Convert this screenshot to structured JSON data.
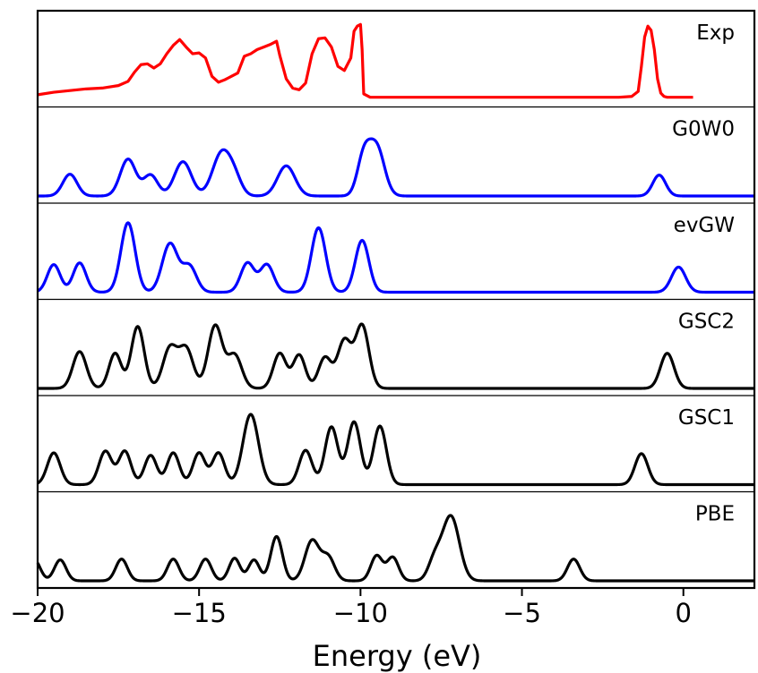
{
  "chart_data": {
    "type": "line",
    "xlabel": "Energy (eV)",
    "ylabel": "",
    "xlim": [
      -20,
      2.2
    ],
    "x_ticks": [
      -20,
      -15,
      -10,
      -5,
      0
    ],
    "x_tick_labels": [
      "−20",
      "−15",
      "−10",
      "−5",
      "0"
    ],
    "grid": false,
    "legend": "panel labels at top-right of each panel",
    "panels": [
      {
        "name": "Exp",
        "color": "#ff0000",
        "x": [
          -20,
          -19.5,
          -19,
          -18.5,
          -18,
          -17.5,
          -17.2,
          -17.0,
          -16.8,
          -16.6,
          -16.4,
          -16.2,
          -16.0,
          -15.8,
          -15.6,
          -15.4,
          -15.2,
          -15.0,
          -14.8,
          -14.6,
          -14.4,
          -14.2,
          -14.0,
          -13.8,
          -13.6,
          -13.4,
          -13.2,
          -13.0,
          -12.8,
          -12.6,
          -12.5,
          -12.3,
          -12.1,
          -11.9,
          -11.7,
          -11.5,
          -11.3,
          -11.1,
          -10.9,
          -10.7,
          -10.5,
          -10.3,
          -10.2,
          -10.1,
          -10.0,
          -9.95,
          -9.9,
          -9.7,
          -9.0,
          -8.0,
          -6.0,
          -4.0,
          -2.0,
          -1.6,
          -1.4,
          -1.3,
          -1.2,
          -1.1,
          -1.0,
          -0.9,
          -0.8,
          -0.7,
          -0.6,
          -0.5,
          -0.3,
          0.0,
          0.3
        ],
        "y": [
          0.06,
          0.09,
          0.11,
          0.13,
          0.14,
          0.17,
          0.22,
          0.33,
          0.42,
          0.43,
          0.38,
          0.43,
          0.55,
          0.65,
          0.72,
          0.63,
          0.55,
          0.56,
          0.5,
          0.28,
          0.21,
          0.24,
          0.28,
          0.32,
          0.52,
          0.55,
          0.6,
          0.63,
          0.66,
          0.7,
          0.53,
          0.25,
          0.14,
          0.12,
          0.2,
          0.55,
          0.73,
          0.74,
          0.63,
          0.4,
          0.35,
          0.5,
          0.82,
          0.88,
          0.9,
          0.6,
          0.07,
          0.03,
          0.03,
          0.03,
          0.03,
          0.03,
          0.03,
          0.04,
          0.1,
          0.4,
          0.75,
          0.88,
          0.83,
          0.6,
          0.25,
          0.08,
          0.04,
          0.03,
          0.03,
          0.03,
          0.03
        ],
        "x_min": -20,
        "x_max": 0.35
      },
      {
        "name": "G0W0",
        "color": "#0000ff",
        "peaks": [
          [
            -19.0,
            0.26,
            0.22
          ],
          [
            -17.2,
            0.44,
            0.24
          ],
          [
            -16.5,
            0.25,
            0.22
          ],
          [
            -15.5,
            0.41,
            0.26
          ],
          [
            -14.3,
            0.51,
            0.28
          ],
          [
            -13.9,
            0.18,
            0.22
          ],
          [
            -12.3,
            0.36,
            0.27
          ],
          [
            -9.9,
            0.45,
            0.2
          ],
          [
            -9.5,
            0.58,
            0.24
          ],
          [
            -0.75,
            0.25,
            0.2
          ]
        ],
        "x_min": -20,
        "x_max": 2.2
      },
      {
        "name": "evGW",
        "color": "#0000ff",
        "peaks": [
          [
            -19.5,
            0.33,
            0.2
          ],
          [
            -18.7,
            0.35,
            0.2
          ],
          [
            -17.2,
            0.83,
            0.22
          ],
          [
            -15.9,
            0.58,
            0.24
          ],
          [
            -15.3,
            0.31,
            0.22
          ],
          [
            -13.5,
            0.35,
            0.21
          ],
          [
            -12.9,
            0.33,
            0.21
          ],
          [
            -11.3,
            0.77,
            0.22
          ],
          [
            -9.95,
            0.62,
            0.21
          ],
          [
            -0.15,
            0.3,
            0.22
          ]
        ],
        "x_min": -20,
        "x_max": 2.2
      },
      {
        "name": "GSC2",
        "color": "#000000",
        "peaks": [
          [
            -18.7,
            0.44,
            0.21
          ],
          [
            -17.6,
            0.42,
            0.19
          ],
          [
            -16.9,
            0.74,
            0.2
          ],
          [
            -15.9,
            0.48,
            0.22
          ],
          [
            -15.4,
            0.47,
            0.22
          ],
          [
            -14.5,
            0.75,
            0.22
          ],
          [
            -13.9,
            0.4,
            0.22
          ],
          [
            -12.5,
            0.42,
            0.2
          ],
          [
            -11.9,
            0.4,
            0.19
          ],
          [
            -11.1,
            0.37,
            0.2
          ],
          [
            -10.5,
            0.57,
            0.21
          ],
          [
            -9.95,
            0.75,
            0.21
          ],
          [
            -0.5,
            0.42,
            0.21
          ]
        ],
        "x_min": -20,
        "x_max": 2.2
      },
      {
        "name": "GSC1",
        "color": "#000000",
        "peaks": [
          [
            -19.5,
            0.38,
            0.2
          ],
          [
            -17.9,
            0.4,
            0.2
          ],
          [
            -17.3,
            0.4,
            0.19
          ],
          [
            -16.5,
            0.35,
            0.19
          ],
          [
            -15.8,
            0.38,
            0.19
          ],
          [
            -15.0,
            0.38,
            0.19
          ],
          [
            -14.4,
            0.38,
            0.19
          ],
          [
            -13.4,
            0.84,
            0.24
          ],
          [
            -11.7,
            0.41,
            0.2
          ],
          [
            -10.9,
            0.69,
            0.2
          ],
          [
            -10.2,
            0.75,
            0.2
          ],
          [
            -9.4,
            0.7,
            0.2
          ],
          [
            -1.3,
            0.37,
            0.2
          ]
        ],
        "x_min": -20,
        "x_max": 2.2
      },
      {
        "name": "PBE",
        "color": "#000000",
        "peaks": [
          [
            -20.1,
            0.25,
            0.18
          ],
          [
            -19.3,
            0.25,
            0.18
          ],
          [
            -17.4,
            0.26,
            0.18
          ],
          [
            -15.8,
            0.26,
            0.18
          ],
          [
            -14.8,
            0.26,
            0.18
          ],
          [
            -13.9,
            0.27,
            0.17
          ],
          [
            -13.3,
            0.25,
            0.17
          ],
          [
            -12.6,
            0.53,
            0.18
          ],
          [
            -11.5,
            0.48,
            0.22
          ],
          [
            -11.0,
            0.28,
            0.2
          ],
          [
            -9.5,
            0.3,
            0.18
          ],
          [
            -9.0,
            0.28,
            0.18
          ],
          [
            -7.7,
            0.25,
            0.2
          ],
          [
            -7.2,
            0.77,
            0.26
          ],
          [
            -3.4,
            0.26,
            0.19
          ]
        ],
        "x_min": -20,
        "x_max": 2.2
      }
    ]
  }
}
